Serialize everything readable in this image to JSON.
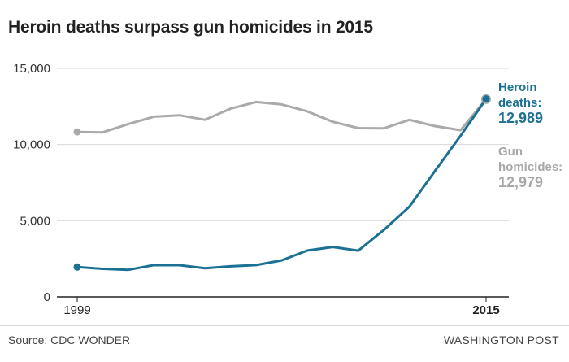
{
  "title": "Heroin deaths surpass gun homicides in 2015",
  "source": "Source: CDC WONDER",
  "credit": "WASHINGTON POST",
  "colors": {
    "heroin": "#1b7193",
    "gun": "#aaaaaa",
    "grid": "#d9d9d9",
    "axis": "#222222"
  },
  "labels": {
    "heroin_name": "Heroin deaths:",
    "heroin_value": "12,989",
    "gun_name": "Gun homicides:",
    "gun_value": "12,979"
  },
  "chart_data": {
    "type": "line",
    "title": "Heroin deaths surpass gun homicides in 2015",
    "xlabel": "",
    "ylabel": "",
    "x": [
      1999,
      2000,
      2001,
      2002,
      2003,
      2004,
      2005,
      2006,
      2007,
      2008,
      2009,
      2010,
      2011,
      2012,
      2013,
      2014,
      2015
    ],
    "x_tick_labels": [
      "1999",
      "2015"
    ],
    "ylim": [
      0,
      15000
    ],
    "y_ticks": [
      0,
      5000,
      10000,
      15000
    ],
    "y_tick_labels": [
      "0",
      "5,000",
      "10,000",
      "15,000"
    ],
    "grid": true,
    "series": [
      {
        "name": "Gun homicides",
        "values": [
          10828,
          10801,
          11348,
          11829,
          11920,
          11624,
          12352,
          12791,
          12632,
          12179,
          11493,
          11078,
          11068,
          11622,
          11208,
          10945,
          12979
        ]
      },
      {
        "name": "Heroin deaths",
        "values": [
          1960,
          1842,
          1779,
          2089,
          2080,
          1878,
          2009,
          2088,
          2399,
          3041,
          3278,
          3036,
          4397,
          5925,
          8257,
          10574,
          12989
        ]
      }
    ]
  }
}
